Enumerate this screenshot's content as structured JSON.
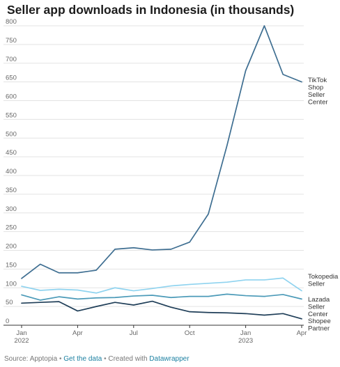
{
  "title": "Seller app downloads in Indonesia (in thousands)",
  "footer": {
    "source": "Source: Apptopia",
    "get_data": "Get the data",
    "created_with": "Created with",
    "datawrapper": "Datawrapper",
    "separator": "•"
  },
  "chart_data": {
    "type": "line",
    "title": "Seller app downloads in Indonesia (in thousands)",
    "xlabel": "",
    "ylabel": "",
    "ylim": [
      0,
      800
    ],
    "yticks": [
      0,
      50,
      100,
      150,
      200,
      250,
      300,
      350,
      400,
      450,
      500,
      550,
      600,
      650,
      700,
      750,
      800
    ],
    "grid": true,
    "legend": "direct labels at line ends (right)",
    "x": [
      "2022-01",
      "2022-02",
      "2022-03",
      "2022-04",
      "2022-05",
      "2022-06",
      "2022-07",
      "2022-08",
      "2022-09",
      "2022-10",
      "2022-11",
      "2022-12",
      "2023-01",
      "2023-02",
      "2023-03",
      "2023-04"
    ],
    "xticks": [
      {
        "index": 0,
        "lines": [
          "Jan",
          "2022"
        ]
      },
      {
        "index": 3,
        "lines": [
          "Apr"
        ]
      },
      {
        "index": 6,
        "lines": [
          "Jul"
        ]
      },
      {
        "index": 9,
        "lines": [
          "Oct"
        ]
      },
      {
        "index": 12,
        "lines": [
          "Jan",
          "2023"
        ]
      },
      {
        "index": 15,
        "lines": [
          "Apr"
        ]
      }
    ],
    "series": [
      {
        "name": "TikTok Shop Seller Center",
        "label_lines": [
          "TikTok",
          "Shop",
          "Seller",
          "Center"
        ],
        "color": "#3e6e91",
        "values": [
          125,
          163,
          140,
          140,
          147,
          203,
          207,
          201,
          203,
          222,
          297,
          480,
          680,
          800,
          670,
          650
        ]
      },
      {
        "name": "Tokopedia Seller",
        "label_lines": [
          "Tokopedia",
          "Seller"
        ],
        "color": "#8fd3ef",
        "values": [
          104,
          93,
          96,
          94,
          86,
          100,
          92,
          98,
          105,
          109,
          112,
          115,
          121,
          121,
          126,
          92
        ]
      },
      {
        "name": "Lazada Seller Center",
        "label_lines": [
          "Lazada",
          "Seller",
          "Center"
        ],
        "color": "#4b9ab8",
        "values": [
          81,
          67,
          76,
          70,
          73,
          74,
          78,
          80,
          74,
          77,
          77,
          83,
          79,
          77,
          82,
          70
        ]
      },
      {
        "name": "Shopee Partner",
        "label_lines": [
          "Shopee",
          "Partner"
        ],
        "color": "#1f3e58",
        "values": [
          59,
          61,
          63,
          38,
          50,
          61,
          54,
          64,
          48,
          36,
          34,
          33,
          31,
          27,
          31,
          17
        ]
      }
    ]
  }
}
